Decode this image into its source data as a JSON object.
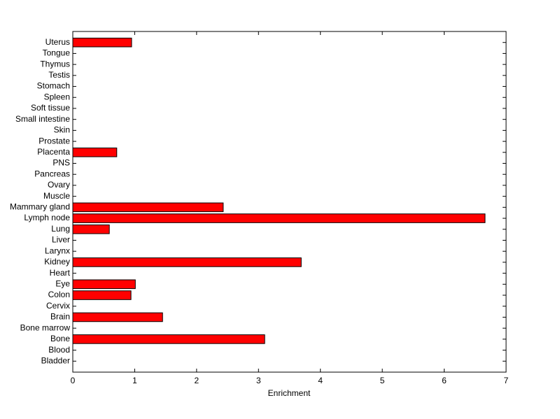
{
  "chart_data": {
    "type": "barh",
    "x_label": "Enrichment",
    "categories": [
      "Bladder",
      "Blood",
      "Bone",
      "Bone marrow",
      "Brain",
      "Cervix",
      "Colon",
      "Eye",
      "Heart",
      "Kidney",
      "Larynx",
      "Liver",
      "Lung",
      "Lymph node",
      "Mammary gland",
      "Muscle",
      "Ovary",
      "Pancreas",
      "PNS",
      "Placenta",
      "Prostate",
      "Skin",
      "Small intestine",
      "Soft tissue",
      "Spleen",
      "Stomach",
      "Testis",
      "Thymus",
      "Tongue",
      "Uterus"
    ],
    "values": [
      0,
      0,
      3.1,
      0,
      1.45,
      0,
      0.94,
      1.01,
      0,
      3.69,
      0,
      0,
      0.59,
      6.66,
      2.43,
      0,
      0,
      0,
      0,
      0.71,
      0,
      0,
      0,
      0,
      0,
      0,
      0,
      0,
      0,
      0.95
    ],
    "color": "#ff0000",
    "xlim": [
      0,
      7
    ],
    "xticks": [
      0,
      1,
      2,
      3,
      4,
      5,
      6,
      7
    ]
  }
}
